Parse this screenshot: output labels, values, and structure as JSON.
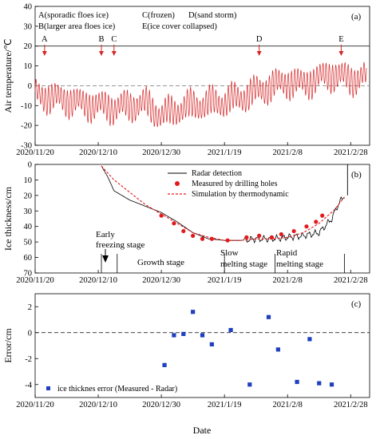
{
  "chart_data": [
    {
      "panel": "(a)",
      "type": "line",
      "ylabel": "Air temperature/℃",
      "ylim": [
        -30,
        40
      ],
      "yticks": [
        "-30",
        "-20",
        "-10",
        "0",
        "10",
        "20",
        "30",
        "40"
      ],
      "grid": false,
      "reference_lines": [
        {
          "y": 0,
          "style": "dashed"
        },
        {
          "y": 20,
          "style": "solid"
        }
      ],
      "event_legend": [
        "A(sporadic floes ice)",
        "B(larger area floes ice)",
        "C(frozen)",
        "D(sand storm)",
        "E(ice cover collapsed)"
      ],
      "events": [
        {
          "label": "A",
          "date": "2020/11/23"
        },
        {
          "label": "B",
          "date": "2020/12/11"
        },
        {
          "label": "C",
          "date": "2020/12/15"
        },
        {
          "label": "D",
          "date": "2021/1/30"
        },
        {
          "label": "E",
          "date": "2021/2/25"
        }
      ],
      "series": [
        {
          "color": "#d62728",
          "x": [
            "2020/11/20",
            "2020/11/25",
            "2020/11/30",
            "2020/12/5",
            "2020/12/10",
            "2020/12/15",
            "2020/12/20",
            "2020/12/25",
            "2020/12/30",
            "2021/1/4",
            "2021/1/9",
            "2021/1/14",
            "2021/1/19",
            "2021/1/24",
            "2021/1/29",
            "2021/2/3",
            "2021/2/8",
            "2021/2/13",
            "2021/2/18",
            "2021/2/23",
            "2021/2/28",
            "2021/3/5"
          ],
          "values": [
            -4,
            -6,
            -7,
            -9,
            -10,
            -11,
            -10,
            -9,
            -15,
            -12,
            -10,
            -9,
            -8,
            -6,
            -3,
            0,
            2,
            1,
            4,
            6,
            3,
            5
          ]
        }
      ]
    },
    {
      "panel": "(b)",
      "type": "line",
      "ylabel": "Ice thickness/cm",
      "ylim": [
        70,
        0
      ],
      "yticks": [
        "0",
        "10",
        "20",
        "30",
        "40",
        "50",
        "60",
        "70"
      ],
      "grid": false,
      "legend": [
        "Radar detection",
        "Measured by drilling holes",
        "Simulation by thermodynamic"
      ],
      "legend_position": "top-right",
      "stages": [
        "Early freezing stage",
        "Growth stage",
        "Slow melting stage",
        "Rapid melting stage"
      ],
      "series": [
        {
          "name": "Radar detection",
          "color": "#000000",
          "x": [
            "2020/12/11",
            "2020/12/13",
            "2020/12/15",
            "2020/12/20",
            "2020/12/25",
            "2020/12/30",
            "2021/1/4",
            "2021/1/9",
            "2021/1/14",
            "2021/1/19",
            "2021/1/24",
            "2021/1/29",
            "2021/2/3",
            "2021/2/8",
            "2021/2/13",
            "2021/2/18",
            "2021/2/22",
            "2021/2/24",
            "2021/2/26"
          ],
          "values": [
            1,
            8,
            17,
            23,
            27,
            31,
            37,
            44,
            48,
            49,
            49,
            48,
            48,
            47,
            46,
            44,
            35,
            26,
            20
          ]
        },
        {
          "name": "Measured by drilling holes",
          "color": "#e31a1c",
          "x": [
            "2020/12/30",
            "2021/1/3",
            "2021/1/6",
            "2021/1/9",
            "2021/1/12",
            "2021/1/15",
            "2021/1/20",
            "2021/1/26",
            "2021/1/30",
            "2021/2/3",
            "2021/2/6",
            "2021/2/10",
            "2021/2/14",
            "2021/2/17",
            "2021/2/19"
          ],
          "values": [
            33,
            38,
            43,
            46,
            48,
            48,
            49,
            47,
            46,
            47,
            45,
            43,
            40,
            37,
            33
          ]
        },
        {
          "name": "Simulation by thermodynamic",
          "color": "#e31a1c",
          "style": "dashed",
          "x": [
            "2020/12/11",
            "2020/12/15",
            "2020/12/20",
            "2020/12/25",
            "2020/12/30",
            "2021/1/4",
            "2021/1/9",
            "2021/1/14",
            "2021/1/19",
            "2021/1/24",
            "2021/1/29",
            "2021/2/3",
            "2021/2/8",
            "2021/2/13",
            "2021/2/18",
            "2021/2/23",
            "2021/2/26"
          ],
          "values": [
            1,
            10,
            18,
            26,
            32,
            38,
            44,
            47,
            49,
            49,
            48,
            48,
            47,
            44,
            38,
            29,
            21
          ]
        }
      ]
    },
    {
      "panel": "(c)",
      "type": "scatter",
      "xlabel": "Date",
      "ylabel": "Error/cm",
      "ylim": [
        -5,
        3
      ],
      "yticks": [
        "-4",
        "-2",
        "0",
        "2"
      ],
      "grid": false,
      "reference_lines": [
        {
          "y": 0,
          "style": "dashed"
        }
      ],
      "legend": [
        "ice thicknes error (Measured - Radar)"
      ],
      "legend_position": "bottom-left",
      "series": [
        {
          "name": "ice thicknes error (Measured - Radar)",
          "color": "#1f3fbf",
          "x": [
            "2020/12/31",
            "2021/1/3",
            "2021/1/6",
            "2021/1/9",
            "2021/1/12",
            "2021/1/15",
            "2021/1/21",
            "2021/1/27",
            "2021/2/2",
            "2021/2/5",
            "2021/2/11",
            "2021/2/15",
            "2021/2/18",
            "2021/2/22"
          ],
          "values": [
            -2.5,
            -0.2,
            -0.1,
            1.6,
            -0.2,
            -0.9,
            0.2,
            -4.0,
            1.2,
            -1.3,
            -3.8,
            -0.5,
            -3.9,
            -4.0
          ]
        }
      ]
    }
  ],
  "x_axis": {
    "start": "2020/11/20",
    "end": "2021/3/6",
    "tick_labels": [
      "2020/11/20",
      "2020/12/10",
      "2020/12/30",
      "2021/1/19",
      "2021/2/8",
      "2021/2/28"
    ]
  }
}
